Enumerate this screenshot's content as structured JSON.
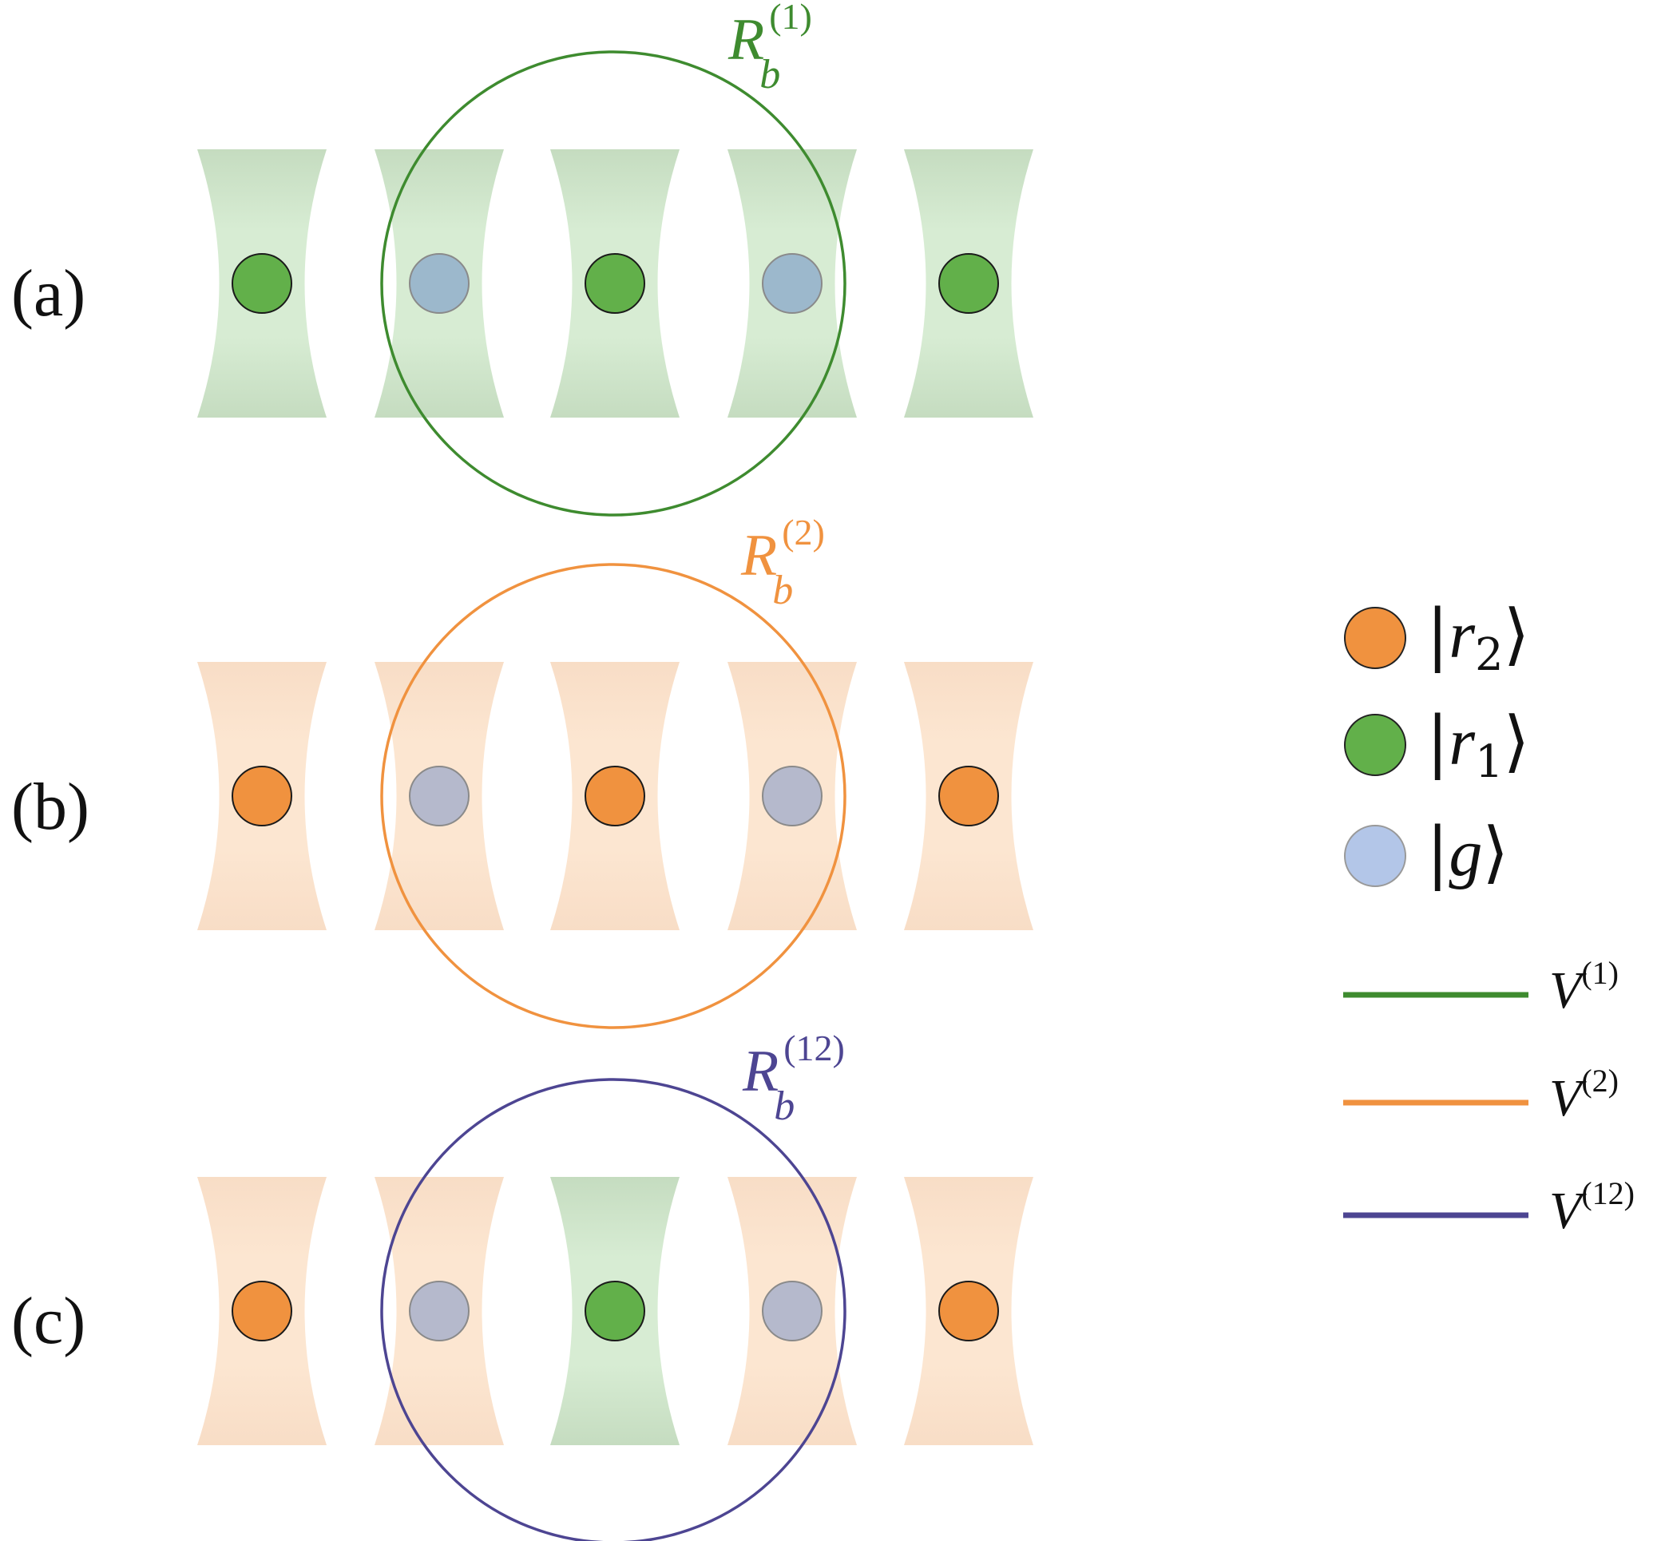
{
  "colors": {
    "r1": "#62b04a",
    "r2": "#f0923f",
    "g": "#b3c6e8",
    "g_in_green_trap": "#9cb8cc",
    "g_in_orange_trap": "#b5b9cc",
    "circle_1": "#3e8b2f",
    "circle_2": "#f0923f",
    "circle_12": "#4d4592",
    "trap_green": "#d7ecd3",
    "trap_green_edge": "#c5dcc0",
    "trap_orange": "#fce6d1",
    "trap_orange_edge": "#f8ddc6"
  },
  "panels": [
    {
      "label": "(a)",
      "blockade_symbol": "R",
      "blockade_sub": "b",
      "blockade_sup": "(1)",
      "circle_color": "circle_1",
      "traps": [
        "green",
        "green",
        "green",
        "green",
        "green"
      ],
      "atoms": [
        "r1",
        "g",
        "r1",
        "g",
        "r1"
      ]
    },
    {
      "label": "(b)",
      "blockade_symbol": "R",
      "blockade_sub": "b",
      "blockade_sup": "(2)",
      "circle_color": "circle_2",
      "traps": [
        "orange",
        "orange",
        "orange",
        "orange",
        "orange"
      ],
      "atoms": [
        "r2",
        "g",
        "r2",
        "g",
        "r2"
      ]
    },
    {
      "label": "(c)",
      "blockade_symbol": "R",
      "blockade_sub": "b",
      "blockade_sup": "(12)",
      "circle_color": "circle_12",
      "traps": [
        "orange",
        "orange",
        "green",
        "orange",
        "orange"
      ],
      "atoms": [
        "r2",
        "g",
        "r1",
        "g",
        "r2"
      ]
    }
  ],
  "legend": {
    "states": [
      {
        "state": "r2",
        "open": "|",
        "symbol": "r",
        "sub": "2",
        "close": "⟩"
      },
      {
        "state": "r1",
        "open": "|",
        "symbol": "r",
        "sub": "1",
        "close": "⟩"
      },
      {
        "state": "g",
        "open": "|",
        "symbol": "g",
        "sub": "",
        "close": "⟩"
      }
    ],
    "interactions": [
      {
        "color": "circle_1",
        "symbol": "V",
        "sup": "(1)"
      },
      {
        "color": "circle_2",
        "symbol": "V",
        "sup": "(2)"
      },
      {
        "color": "circle_12",
        "symbol": "V",
        "sup": "(12)"
      }
    ]
  }
}
